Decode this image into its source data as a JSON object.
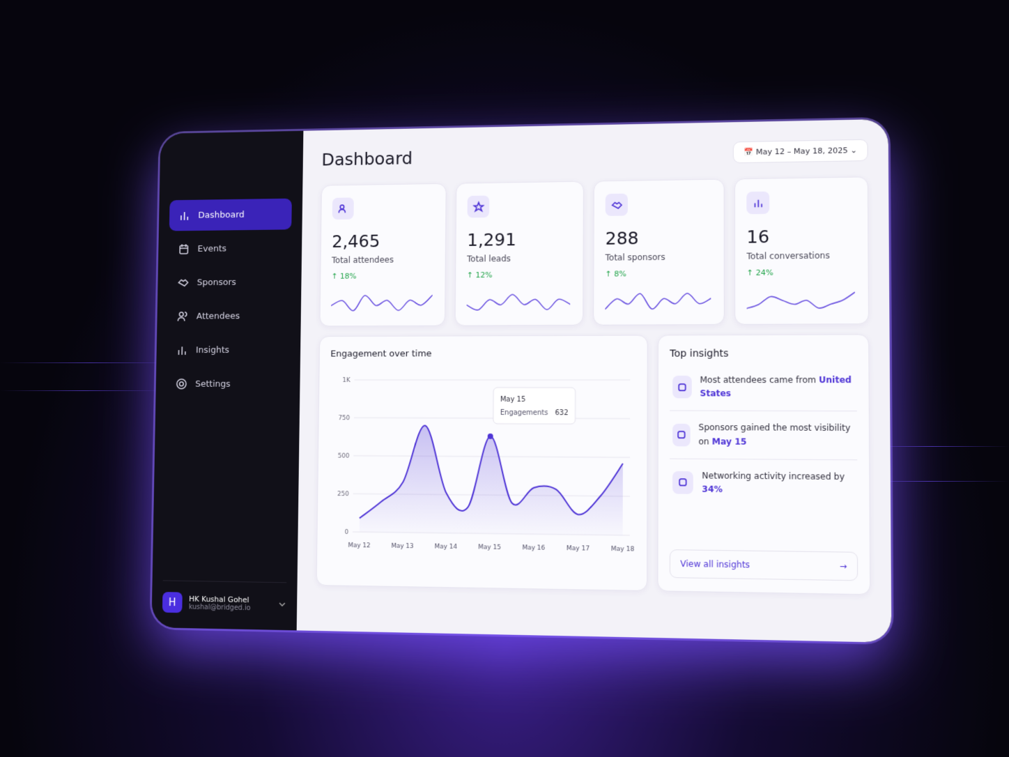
{
  "sidebar": {
    "nav": [
      {
        "label": "Dashboard",
        "active": true
      },
      {
        "label": "Events",
        "active": false
      },
      {
        "label": "Sponsors",
        "active": false
      },
      {
        "label": "Attendees",
        "active": false
      },
      {
        "label": "Insights",
        "active": false
      },
      {
        "label": "Settings",
        "active": false
      }
    ],
    "user": {
      "initial": "H",
      "name": "HK Kushal Gohel",
      "email": "kushal@bridged.io"
    }
  },
  "header": {
    "title": "Dashboard",
    "date_range": "May 12 – May 18, 2025"
  },
  "stats": [
    {
      "value": "2,465",
      "label": "Total attendees",
      "change": "18%",
      "trend": [
        3,
        4,
        2,
        5,
        3,
        4,
        2,
        4,
        3,
        5
      ]
    },
    {
      "value": "1,291",
      "label": "Total leads",
      "change": "12%",
      "trend": [
        3,
        2,
        4,
        3,
        5,
        3,
        4,
        2,
        4,
        3
      ]
    },
    {
      "value": "288",
      "label": "Total sponsors",
      "change": "8%",
      "trend": [
        2,
        4,
        3,
        5,
        2,
        4,
        3,
        5,
        3,
        4
      ]
    },
    {
      "value": "16",
      "label": "Total conversations",
      "change": "24%",
      "trend": [
        2,
        3,
        5,
        4,
        3,
        4,
        2,
        3,
        4,
        6
      ]
    }
  ],
  "chart_data": {
    "type": "line",
    "title": "Engagement over time",
    "categories": [
      "May 12",
      null,
      "May 13",
      null,
      "May 14",
      null,
      "May 15",
      null,
      "May 16",
      null,
      "May 17",
      null,
      "May 18"
    ],
    "values": [
      90,
      200,
      330,
      700,
      260,
      170,
      632,
      200,
      300,
      290,
      130,
      250,
      460
    ],
    "color": "#4f35d6",
    "ylim": [
      0,
      1000
    ],
    "yticks": [
      0,
      250,
      500,
      750,
      {
        "value": 1000,
        "label": "1K"
      }
    ],
    "grid": true,
    "tooltip": {
      "index": 6,
      "title": "May 15",
      "label": "Engagements",
      "value": 632
    }
  },
  "insights": {
    "title": "Top insights",
    "items": [
      {
        "text": "Most attendees came from",
        "highlight": "United States"
      },
      {
        "text": "Sponsors gained the most visibility on",
        "highlight": "May 15"
      },
      {
        "text": "Networking activity increased by",
        "highlight": "34%"
      }
    ],
    "link": "View all insights"
  }
}
